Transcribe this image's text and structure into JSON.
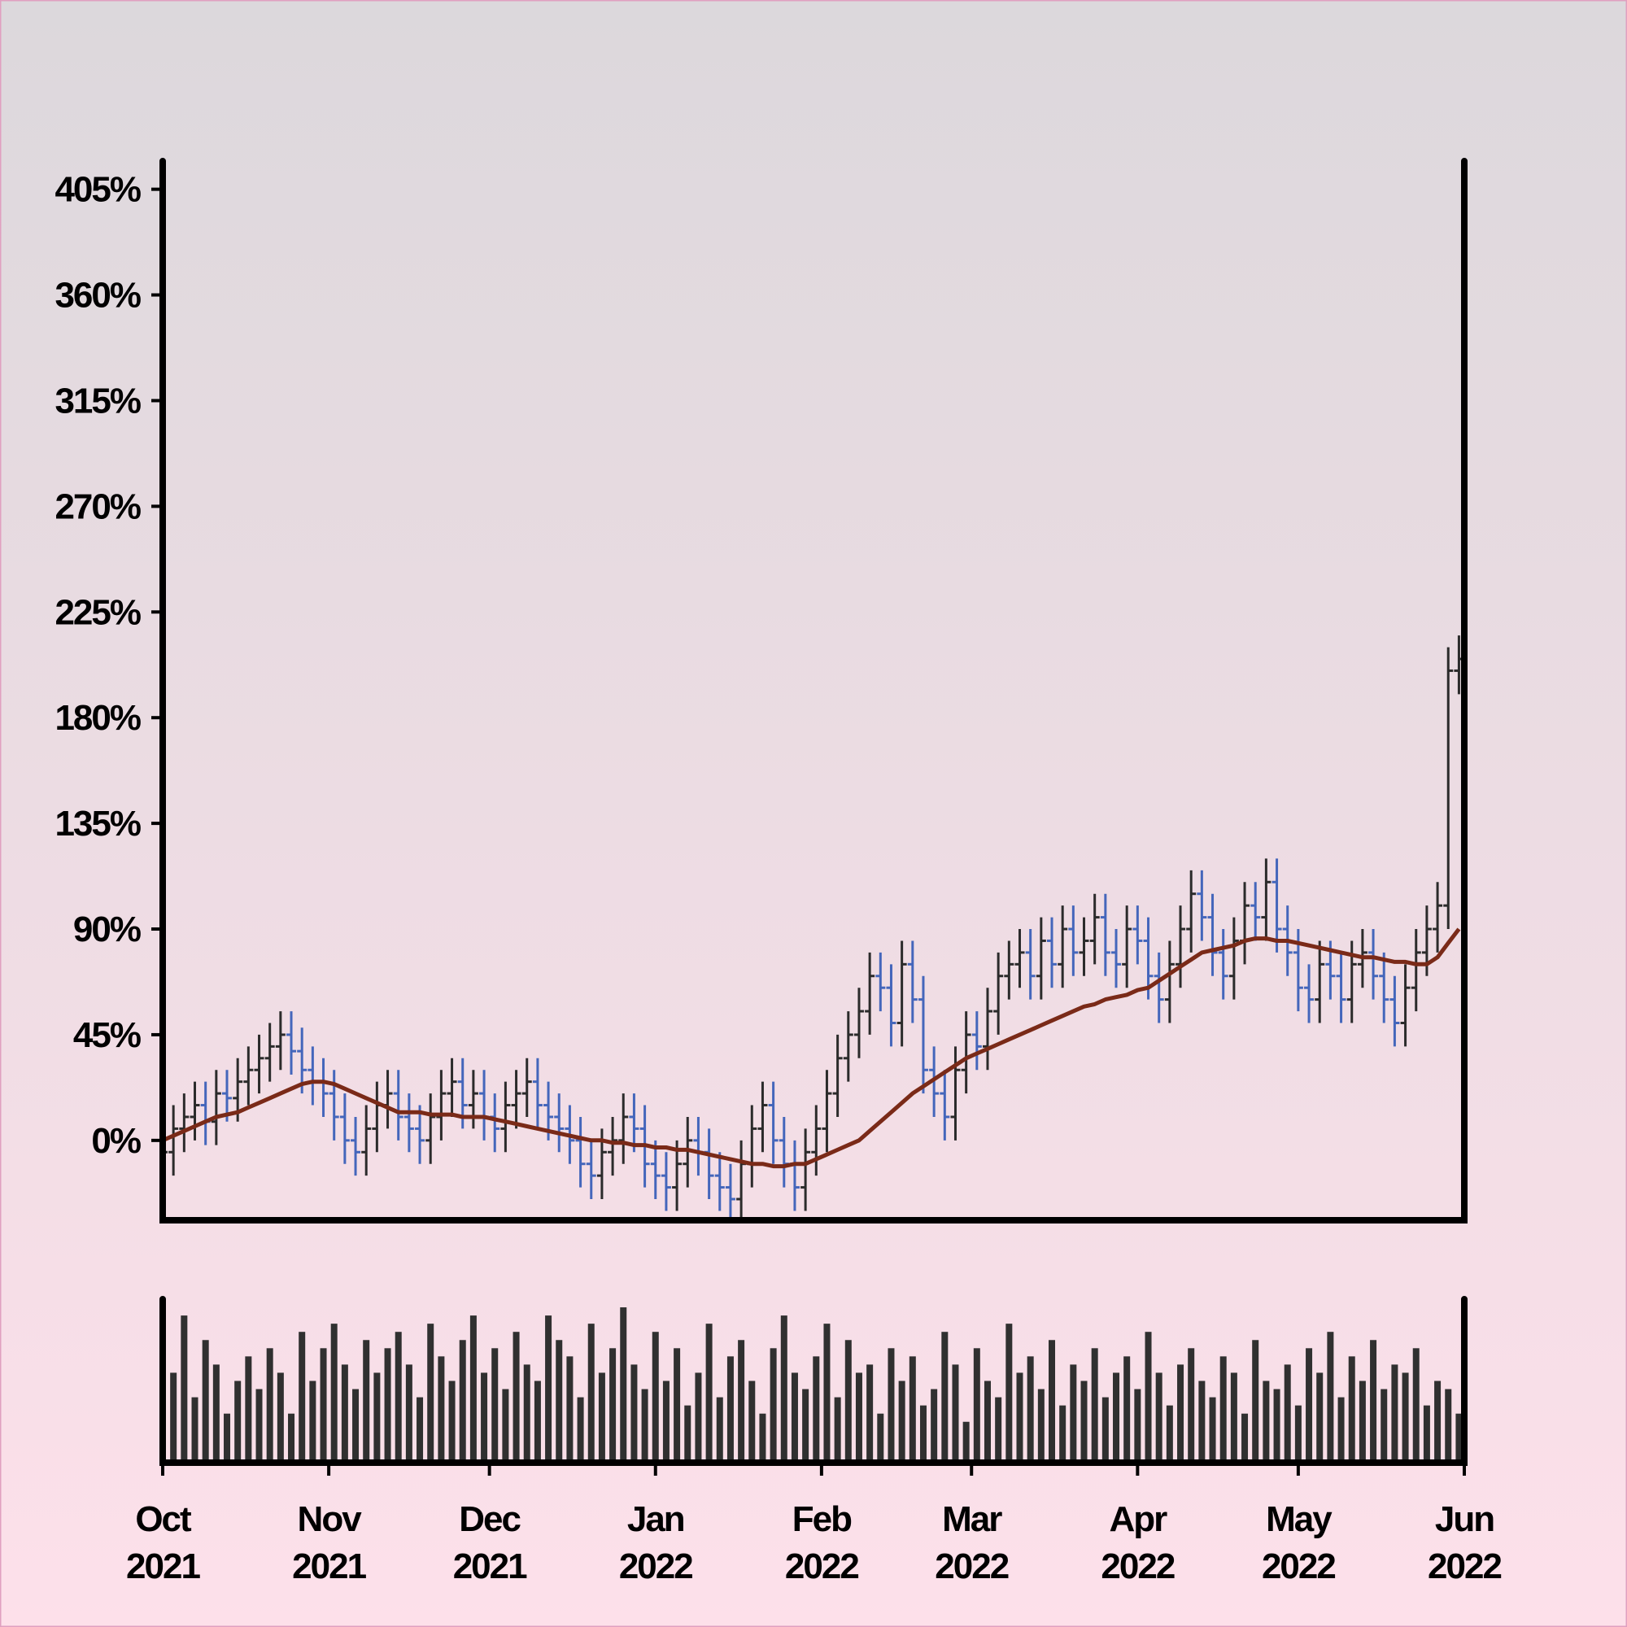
{
  "chart_data": {
    "type": "ohlc",
    "xlim": [
      0,
      243
    ],
    "xticks": [
      {
        "value": 0,
        "label": "Oct 2021"
      },
      {
        "value": 31,
        "label": "Nov 2021"
      },
      {
        "value": 61,
        "label": "Dec 2021"
      },
      {
        "value": 92,
        "label": "Jan 2022"
      },
      {
        "value": 123,
        "label": "Feb 2022"
      },
      {
        "value": 151,
        "label": "Mar 2022"
      },
      {
        "value": 182,
        "label": "Apr 2022"
      },
      {
        "value": 212,
        "label": "May 2022"
      },
      {
        "value": 243,
        "label": "Jun 2022"
      }
    ],
    "ylim": [
      -34,
      417
    ],
    "yticks": [
      {
        "value": 0,
        "label": "0%"
      },
      {
        "value": 45,
        "label": "45%"
      },
      {
        "value": 90,
        "label": "90%"
      },
      {
        "value": 135,
        "label": "135%"
      },
      {
        "value": 180,
        "label": "180%"
      },
      {
        "value": 225,
        "label": "225%"
      },
      {
        "value": 270,
        "label": "270%"
      },
      {
        "value": 315,
        "label": "315%"
      },
      {
        "value": 360,
        "label": "360%"
      },
      {
        "value": 405,
        "label": "405%"
      }
    ],
    "up_color": "#2b2b2b",
    "down_color": "#4466bb",
    "ma_color": "#7a2a18",
    "volume_color": "#303030",
    "x": [
      0,
      2,
      4,
      6,
      8,
      10,
      12,
      14,
      16,
      18,
      20,
      22,
      24,
      26,
      28,
      30,
      32,
      34,
      36,
      38,
      40,
      42,
      44,
      46,
      48,
      50,
      52,
      54,
      56,
      58,
      60,
      62,
      64,
      66,
      68,
      70,
      72,
      74,
      76,
      78,
      80,
      82,
      84,
      86,
      88,
      90,
      92,
      94,
      96,
      98,
      100,
      102,
      104,
      106,
      108,
      110,
      112,
      114,
      116,
      118,
      120,
      122,
      124,
      126,
      128,
      130,
      132,
      134,
      136,
      138,
      140,
      142,
      144,
      146,
      148,
      150,
      152,
      154,
      156,
      158,
      160,
      162,
      164,
      166,
      168,
      170,
      172,
      174,
      176,
      178,
      180,
      182,
      184,
      186,
      188,
      190,
      192,
      194,
      196,
      198,
      200,
      202,
      204,
      206,
      208,
      210,
      212,
      214,
      216,
      218,
      220,
      222,
      224,
      226,
      228,
      230,
      232,
      234,
      236,
      238,
      240,
      242
    ],
    "open": [
      -10,
      -5,
      5,
      10,
      15,
      8,
      20,
      18,
      25,
      30,
      35,
      40,
      45,
      38,
      30,
      25,
      20,
      10,
      0,
      -5,
      5,
      15,
      20,
      10,
      5,
      0,
      10,
      20,
      25,
      15,
      20,
      10,
      5,
      15,
      20,
      25,
      15,
      10,
      5,
      0,
      -10,
      -15,
      -5,
      0,
      10,
      5,
      -10,
      -15,
      -20,
      -10,
      0,
      -5,
      -15,
      -20,
      -25,
      -10,
      5,
      15,
      0,
      -10,
      -20,
      -5,
      5,
      20,
      35,
      45,
      55,
      70,
      65,
      50,
      75,
      60,
      30,
      20,
      10,
      30,
      45,
      40,
      55,
      70,
      75,
      80,
      70,
      85,
      75,
      90,
      80,
      85,
      95,
      80,
      75,
      90,
      85,
      70,
      60,
      75,
      90,
      105,
      95,
      80,
      70,
      85,
      100,
      95,
      110,
      90,
      80,
      65,
      60,
      75,
      70,
      60,
      75,
      80,
      70,
      60,
      50,
      65,
      80,
      90,
      100,
      200
    ],
    "high": [
      5,
      15,
      20,
      25,
      25,
      30,
      30,
      35,
      40,
      45,
      50,
      55,
      55,
      48,
      40,
      35,
      30,
      20,
      10,
      15,
      25,
      30,
      30,
      20,
      15,
      20,
      30,
      35,
      35,
      30,
      30,
      20,
      25,
      30,
      35,
      35,
      25,
      20,
      15,
      10,
      0,
      5,
      10,
      20,
      20,
      15,
      0,
      -5,
      0,
      10,
      10,
      5,
      -5,
      -10,
      0,
      15,
      25,
      25,
      10,
      0,
      5,
      15,
      30,
      45,
      55,
      65,
      80,
      80,
      75,
      85,
      85,
      70,
      40,
      30,
      40,
      55,
      55,
      65,
      80,
      85,
      90,
      90,
      95,
      95,
      100,
      100,
      95,
      105,
      105,
      90,
      100,
      100,
      95,
      80,
      85,
      100,
      115,
      115,
      105,
      90,
      95,
      110,
      110,
      120,
      120,
      100,
      90,
      75,
      85,
      85,
      80,
      85,
      90,
      90,
      80,
      70,
      75,
      90,
      100,
      110,
      210,
      215
    ],
    "low": [
      -20,
      -15,
      -5,
      0,
      -2,
      -2,
      8,
      8,
      15,
      20,
      25,
      30,
      28,
      20,
      15,
      10,
      0,
      -10,
      -15,
      -15,
      -5,
      5,
      0,
      -5,
      -10,
      -10,
      0,
      10,
      5,
      5,
      0,
      -5,
      -5,
      5,
      10,
      5,
      0,
      -5,
      -10,
      -20,
      -25,
      -25,
      -15,
      -10,
      -5,
      -20,
      -25,
      -30,
      -30,
      -20,
      -15,
      -25,
      -30,
      -35,
      -35,
      -20,
      -5,
      -10,
      -20,
      -30,
      -30,
      -15,
      -5,
      10,
      25,
      35,
      45,
      55,
      40,
      40,
      50,
      20,
      10,
      0,
      0,
      20,
      30,
      30,
      45,
      60,
      65,
      60,
      60,
      65,
      65,
      70,
      70,
      75,
      70,
      65,
      65,
      75,
      60,
      50,
      50,
      65,
      80,
      85,
      70,
      60,
      60,
      75,
      85,
      85,
      80,
      70,
      55,
      50,
      50,
      60,
      50,
      50,
      65,
      60,
      50,
      40,
      40,
      55,
      70,
      80,
      90,
      190
    ],
    "close": [
      -5,
      5,
      10,
      15,
      8,
      20,
      18,
      25,
      30,
      35,
      40,
      45,
      38,
      30,
      25,
      20,
      10,
      0,
      -5,
      5,
      15,
      20,
      10,
      5,
      0,
      10,
      20,
      25,
      15,
      20,
      10,
      5,
      15,
      20,
      25,
      15,
      10,
      5,
      0,
      -10,
      -15,
      -5,
      0,
      10,
      5,
      -10,
      -15,
      -20,
      -10,
      0,
      -5,
      -15,
      -20,
      -25,
      -10,
      5,
      15,
      0,
      -10,
      -20,
      -5,
      5,
      20,
      35,
      45,
      55,
      70,
      65,
      50,
      75,
      60,
      30,
      20,
      10,
      30,
      45,
      40,
      55,
      70,
      75,
      80,
      70,
      85,
      75,
      90,
      80,
      85,
      95,
      80,
      75,
      90,
      85,
      70,
      60,
      75,
      90,
      105,
      95,
      80,
      70,
      85,
      100,
      95,
      110,
      90,
      80,
      65,
      60,
      75,
      70,
      60,
      75,
      80,
      70,
      60,
      50,
      65,
      80,
      90,
      100,
      200,
      205
    ],
    "ma": [
      0,
      2,
      4,
      6,
      8,
      10,
      11,
      12,
      14,
      16,
      18,
      20,
      22,
      24,
      25,
      25,
      24,
      22,
      20,
      18,
      16,
      14,
      12,
      12,
      12,
      11,
      11,
      11,
      10,
      10,
      10,
      9,
      8,
      7,
      6,
      5,
      4,
      3,
      2,
      1,
      0,
      0,
      -1,
      -1,
      -2,
      -2,
      -3,
      -3,
      -4,
      -4,
      -5,
      -6,
      -7,
      -8,
      -9,
      -10,
      -10,
      -11,
      -11,
      -10,
      -10,
      -8,
      -6,
      -4,
      -2,
      0,
      4,
      8,
      12,
      16,
      20,
      23,
      26,
      29,
      32,
      35,
      37,
      39,
      41,
      43,
      45,
      47,
      49,
      51,
      53,
      55,
      57,
      58,
      60,
      61,
      62,
      64,
      65,
      68,
      71,
      74,
      77,
      80,
      81,
      82,
      83,
      85,
      86,
      86,
      85,
      85,
      84,
      83,
      82,
      81,
      80,
      79,
      78,
      78,
      77,
      76,
      76,
      75,
      75,
      78,
      84,
      90
    ],
    "volume_ylim": [
      0,
      100
    ],
    "volume": [
      85,
      55,
      90,
      40,
      75,
      60,
      30,
      50,
      65,
      45,
      70,
      55,
      30,
      80,
      50,
      70,
      85,
      60,
      45,
      75,
      55,
      70,
      80,
      60,
      40,
      85,
      65,
      50,
      75,
      90,
      55,
      70,
      45,
      80,
      60,
      50,
      90,
      75,
      65,
      40,
      85,
      55,
      70,
      95,
      60,
      45,
      80,
      50,
      70,
      35,
      55,
      85,
      40,
      65,
      75,
      50,
      30,
      70,
      90,
      55,
      45,
      65,
      85,
      40,
      75,
      55,
      60,
      30,
      70,
      50,
      65,
      35,
      45,
      80,
      60,
      25,
      70,
      50,
      40,
      85,
      55,
      65,
      45,
      75,
      35,
      60,
      50,
      70,
      40,
      55,
      65,
      45,
      80,
      55,
      35,
      60,
      70,
      50,
      40,
      65,
      55,
      30,
      75,
      50,
      45,
      60,
      35,
      70,
      55,
      80,
      40,
      65,
      50,
      75,
      45,
      60,
      55,
      70,
      35,
      50,
      45,
      30
    ]
  }
}
